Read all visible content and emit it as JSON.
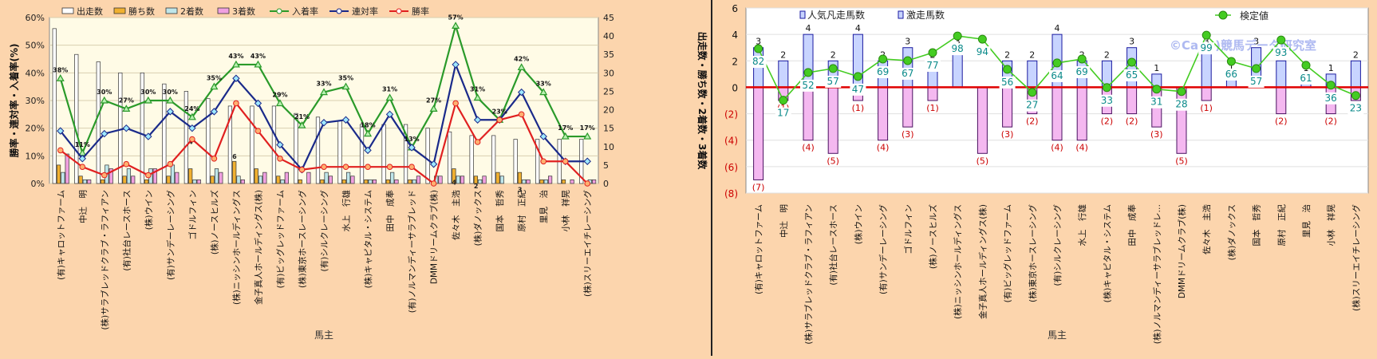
{
  "left_chart": {
    "xlabel": "馬主",
    "ylabel_left": "勝率・連対率・入着率(%)",
    "ylabel_right": "出走数・勝ち数・2着数・3着数",
    "legend": [
      "出走数",
      "勝ち数",
      "2着数",
      "3着数",
      "入着率",
      "連対率",
      "勝率"
    ]
  },
  "right_chart": {
    "xlabel": "馬主",
    "legend": [
      "人気凡走馬数",
      "激走馬数",
      "検定値"
    ],
    "watermark": "©Cano)競馬データ研究室"
  },
  "chart_data": [
    {
      "type": "bar",
      "title": "",
      "xlabel": "馬主",
      "ylabel": "勝率・連対率・入着率(%)",
      "y2label": "出走数・勝ち数・2着数・3着数",
      "ylim": [
        0,
        60
      ],
      "y2lim": [
        0,
        45
      ],
      "yticks": [
        "0%",
        "10%",
        "20%",
        "30%",
        "40%",
        "50%",
        "60%"
      ],
      "y2ticks": [
        "0",
        "5",
        "10",
        "15",
        "20",
        "25",
        "30",
        "35",
        "40",
        "45"
      ],
      "grid": true,
      "legend_position": "top",
      "categories": [
        "(有)キャロットファーム",
        "中辻　明",
        "(株)サラブレッドクラブ・ラフィアン",
        "(有)社台レースホース",
        "(株)ウイン",
        "(有)サンデーレーシング",
        "ゴドルフィン",
        "(株)ノースヒルズ",
        "(株)ニッシンホールディングス",
        "金子真人ホールディングス(株)",
        "(有)ビッグレッドファーム",
        "(株)東京ホースレーシング",
        "(有)シルクレーシング",
        "水上　行雄",
        "(株)キャピタル・システム",
        "田中　成奉",
        "(有)ノルマンディーサラブレッド",
        "DMMドリームクラブ(株)",
        "佐々木　主浩",
        "(株)ダノックス",
        "国本　哲秀",
        "原村　正紀",
        "里見　治",
        "小林　祥晃",
        "(株)スリーエイチレーシング"
      ],
      "series": [
        {
          "name": "出走数",
          "axis": "right",
          "values": [
            42,
            35,
            33,
            30,
            30,
            27,
            25,
            23,
            21,
            21,
            21,
            19,
            18,
            17,
            16,
            16,
            16,
            15,
            14,
            13,
            13,
            12,
            12,
            12,
            12
          ],
          "color": "#ffffff"
        },
        {
          "name": "勝ち数",
          "axis": "right",
          "values": [
            5,
            2,
            1,
            2,
            1,
            2,
            4,
            2,
            6,
            4,
            2,
            1,
            1,
            1,
            1,
            1,
            1,
            0,
            4,
            2,
            3,
            3,
            1,
            1,
            0
          ],
          "color": "#f0b030"
        },
        {
          "name": "2着数",
          "axis": "right",
          "values": [
            3,
            1,
            5,
            4,
            4,
            5,
            1,
            4,
            2,
            2,
            1,
            0,
            3,
            3,
            1,
            3,
            1,
            2,
            2,
            1,
            2,
            1,
            1,
            0,
            1
          ],
          "color": "#bfe6ea"
        },
        {
          "name": "3着数",
          "axis": "right",
          "values": [
            8,
            1,
            4,
            2,
            4,
            3,
            1,
            3,
            1,
            3,
            3,
            3,
            2,
            2,
            1,
            1,
            2,
            2,
            2,
            2,
            0,
            1,
            2,
            1,
            1
          ],
          "color": "#f0a0e0"
        },
        {
          "name": "入着率",
          "axis": "left",
          "values": [
            38,
            11,
            30,
            27,
            30,
            30,
            24,
            35,
            43,
            43,
            29,
            21,
            33,
            35,
            18,
            31,
            13,
            27,
            57,
            31,
            23,
            42,
            33,
            17,
            17
          ],
          "color": "#2a9a2a"
        },
        {
          "name": "連対率",
          "axis": "left",
          "values": [
            19,
            9,
            18,
            20,
            17,
            26,
            20,
            26,
            38,
            29,
            14,
            5,
            22,
            23,
            12,
            25,
            13,
            7,
            43,
            23,
            23,
            33,
            17,
            8,
            8
          ],
          "color": "#1a2a8a"
        },
        {
          "name": "勝率",
          "axis": "left",
          "values": [
            12,
            6,
            3,
            7,
            3,
            7,
            16,
            9,
            29,
            19,
            9,
            5,
            6,
            6,
            6,
            6,
            6,
            0,
            29,
            15,
            23,
            25,
            8,
            8,
            0
          ],
          "color": "#e02020"
        }
      ],
      "data_labels": {
        "入着率": [
          "38%",
          "11%",
          "30%",
          "27%",
          "30%",
          "30%",
          "24%",
          "35%",
          "43%",
          "43%",
          "29%",
          "21%",
          "33%",
          "35%",
          "18%",
          "31%",
          "13%",
          "27%",
          "57%",
          "31%",
          "23%",
          "42%",
          "33%",
          "17%",
          "17%"
        ],
        "勝ち数": [
          "",
          "",
          "",
          "",
          "",
          "",
          "4",
          "",
          "6",
          "",
          "",
          "",
          "",
          "",
          "",
          "",
          "",
          "",
          "4",
          "2",
          "",
          "3",
          "",
          "",
          ""
        ]
      }
    },
    {
      "type": "bar",
      "title": "",
      "xlabel": "馬主",
      "ylim": [
        -8,
        6
      ],
      "yticks": [
        "(8)",
        "(6)",
        "(4)",
        "(2)",
        "0",
        "2",
        "4",
        "6"
      ],
      "grid": true,
      "legend_position": "top",
      "categories": [
        "(有)キャロットファーム",
        "中辻　明",
        "(株)サラブレッドクラブ・ラフィアン",
        "(有)社台レースホース",
        "(株)ウイン",
        "(有)サンデーレーシング",
        "ゴドルフィン",
        "(株)ノースヒルズ",
        "(株)ニッシンホールディングス",
        "金子真人ホールディングス(株)",
        "(有)ビッグレッドファーム",
        "(株)東京ホースレーシング",
        "(有)シルクレーシング",
        "水上　行雄",
        "(株)キャピタル・システム",
        "田中　成奉",
        "(株)ノルマンディーサラブレッドレ…",
        "DMMドリームクラブ(株)",
        "佐々木　主浩",
        "(株)ダノックス",
        "国本　哲秀",
        "原村　正紀",
        "里見　治",
        "小林　祥晃",
        "(株)スリーエイチレーシング"
      ],
      "series": [
        {
          "name": "激走馬数",
          "values": [
            3,
            2,
            4,
            2,
            4,
            2,
            3,
            2,
            3,
            0,
            2,
            2,
            4,
            2,
            2,
            3,
            1,
            0,
            3,
            1,
            3,
            2,
            1,
            1,
            2
          ],
          "color": "#c8d4ff"
        },
        {
          "name": "人気凡走馬数",
          "values": [
            -7,
            -1,
            -4,
            -5,
            -1,
            -4,
            -3,
            -1,
            0,
            -5,
            -3,
            -2,
            -4,
            -4,
            -2,
            -2,
            -3,
            -5,
            -1,
            0,
            0,
            -2,
            0,
            -2,
            -1
          ],
          "color": "#f4b8f0"
        },
        {
          "name": "検定値",
          "values": [
            82,
            17,
            52,
            57,
            47,
            69,
            67,
            77,
            98,
            94,
            56,
            27,
            64,
            69,
            33,
            65,
            31,
            28,
            99,
            66,
            57,
            93,
            61,
            36,
            23
          ],
          "color": "#44cc22"
        }
      ],
      "data_labels": {
        "激走馬数": [
          "3",
          "2",
          "4",
          "2",
          "4",
          "2",
          "3",
          "2",
          "3",
          "",
          "2",
          "2",
          "4",
          "2",
          "2",
          "3",
          "1",
          "",
          "3",
          "1",
          "3",
          "2",
          "1",
          "1",
          "2"
        ],
        "人気凡走馬数": [
          "(7)",
          "(1)",
          "(4)",
          "(5)",
          "(1)",
          "(4)",
          "(3)",
          "(1)",
          "",
          "(5)",
          "(3)",
          "(2)",
          "(4)",
          "(4)",
          "(2)",
          "(2)",
          "(3)",
          "(5)",
          "(1)",
          "",
          "",
          "(2)",
          "",
          "(2)",
          "(1)"
        ],
        "検定値": [
          "82",
          "17",
          "52",
          "57",
          "47",
          "69",
          "67",
          "77",
          "98",
          "94",
          "56",
          "27",
          "64",
          "69",
          "33",
          "65",
          "31",
          "28",
          "99",
          "66",
          "57",
          "93",
          "61",
          "36",
          "23"
        ]
      }
    }
  ]
}
